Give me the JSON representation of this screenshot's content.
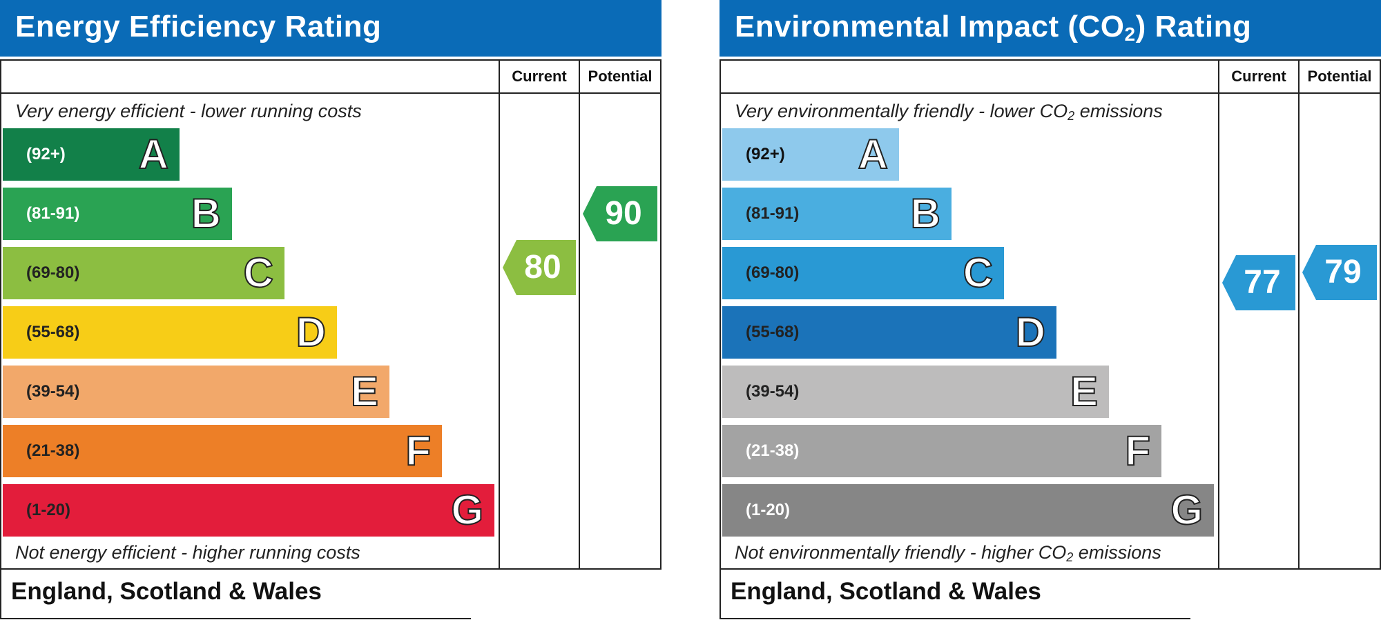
{
  "energy": {
    "title": "Energy Efficiency Rating",
    "col_current": "Current",
    "col_potential": "Potential",
    "caption_top": "Very energy efficient - lower running costs",
    "caption_bottom": "Not energy efficient - higher running costs",
    "footer": "England, Scotland & Wales",
    "current_value": "80",
    "potential_value": "90",
    "current_color": "#8cbe41",
    "potential_color": "#2aa353",
    "bands": [
      {
        "range": "(92+)",
        "letter": "A",
        "color": "#128049",
        "text_color": "#ffffff"
      },
      {
        "range": "(81-91)",
        "letter": "B",
        "color": "#2aa353",
        "text_color": "#ffffff"
      },
      {
        "range": "(69-80)",
        "letter": "C",
        "color": "#8cbe41",
        "text_color": "#222222"
      },
      {
        "range": "(55-68)",
        "letter": "D",
        "color": "#f7cd17",
        "text_color": "#222222"
      },
      {
        "range": "(39-54)",
        "letter": "E",
        "color": "#f2a86a",
        "text_color": "#222222"
      },
      {
        "range": "(21-38)",
        "letter": "F",
        "color": "#ed7f27",
        "text_color": "#222222"
      },
      {
        "range": "(1-20)",
        "letter": "G",
        "color": "#e31d3b",
        "text_color": "#222222"
      }
    ]
  },
  "environment": {
    "title_pre": "Environmental Impact (CO",
    "title_sub": "2",
    "title_post": ") Rating",
    "col_current": "Current",
    "col_potential": "Potential",
    "caption_top_pre": "Very environmentally friendly - lower CO",
    "caption_top_sub": "2",
    "caption_top_post": " emissions",
    "caption_bottom_pre": "Not environmentally friendly - higher CO",
    "caption_bottom_sub": "2",
    "caption_bottom_post": " emissions",
    "footer": "England, Scotland & Wales",
    "current_value": "77",
    "potential_value": "79",
    "current_color": "#2999d4",
    "potential_color": "#2999d4",
    "bands": [
      {
        "range": "(92+)",
        "letter": "A",
        "color": "#8ec9ec",
        "text_color": "#111111"
      },
      {
        "range": "(81-91)",
        "letter": "B",
        "color": "#4aaee0",
        "text_color": "#222222"
      },
      {
        "range": "(69-80)",
        "letter": "C",
        "color": "#2999d4",
        "text_color": "#222222"
      },
      {
        "range": "(55-68)",
        "letter": "D",
        "color": "#1b73b9",
        "text_color": "#222222"
      },
      {
        "range": "(39-54)",
        "letter": "E",
        "color": "#bdbcbc",
        "text_color": "#222222"
      },
      {
        "range": "(21-38)",
        "letter": "F",
        "color": "#a3a3a3",
        "text_color": "#ffffff"
      },
      {
        "range": "(1-20)",
        "letter": "G",
        "color": "#868686",
        "text_color": "#ffffff"
      }
    ]
  },
  "chart_data": [
    {
      "type": "bar",
      "title": "Energy Efficiency Rating",
      "categories": [
        "A",
        "B",
        "C",
        "D",
        "E",
        "F",
        "G"
      ],
      "ranges": [
        "(92+)",
        "(81-91)",
        "(69-80)",
        "(55-68)",
        "(39-54)",
        "(21-38)",
        "(1-20)"
      ],
      "current": 80,
      "potential": 90
    },
    {
      "type": "bar",
      "title": "Environmental Impact (CO2) Rating",
      "categories": [
        "A",
        "B",
        "C",
        "D",
        "E",
        "F",
        "G"
      ],
      "ranges": [
        "(92+)",
        "(81-91)",
        "(69-80)",
        "(55-68)",
        "(39-54)",
        "(21-38)",
        "(1-20)"
      ],
      "current": 77,
      "potential": 79
    }
  ]
}
